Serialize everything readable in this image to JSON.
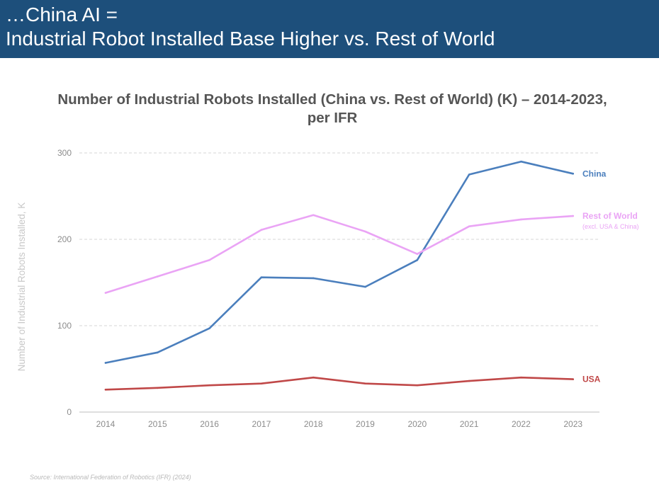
{
  "header": {
    "line1": "…China AI =",
    "line2": "Industrial Robot Installed Base Higher vs. Rest of World"
  },
  "chart_data": {
    "type": "line",
    "title_line1": "Number of Industrial Robots Installed (China vs. Rest of World) (K) – 2014-2023,",
    "title_line2": "per IFR",
    "ylabel": "Number of Industrial Robots Installed, K",
    "xlabel": "",
    "categories": [
      "2014",
      "2015",
      "2016",
      "2017",
      "2018",
      "2019",
      "2020",
      "2021",
      "2022",
      "2023"
    ],
    "ylim": [
      0,
      300
    ],
    "yticks": [
      0,
      100,
      200,
      300
    ],
    "grid": true,
    "series": [
      {
        "name": "China",
        "sublabel": "",
        "color": "#4b7fbd",
        "values": [
          57,
          69,
          97,
          156,
          155,
          145,
          176,
          275,
          290,
          276
        ]
      },
      {
        "name": "Rest of World",
        "sublabel": "(excl. USA & China)",
        "color": "#eaa4f5",
        "values": [
          138,
          157,
          176,
          211,
          228,
          209,
          183,
          215,
          223,
          227
        ]
      },
      {
        "name": "USA",
        "sublabel": "",
        "color": "#c04848",
        "values": [
          26,
          28,
          31,
          33,
          40,
          33,
          31,
          36,
          40,
          38
        ]
      }
    ]
  },
  "source": "Source: International Federation of Robotics (IFR) (2024)"
}
